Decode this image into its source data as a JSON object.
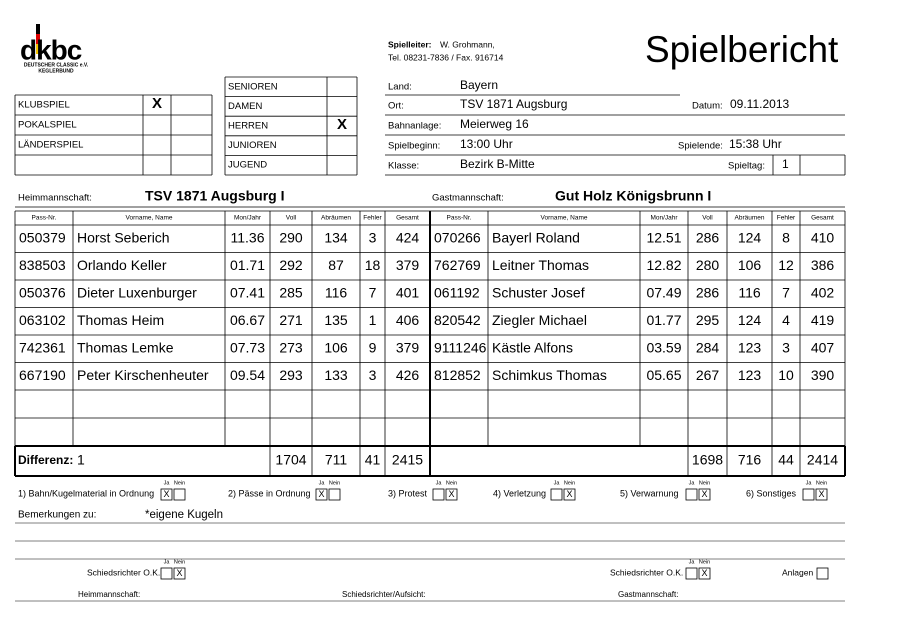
{
  "logo": {
    "mark": "dkbc",
    "line1": "DEUTSCHER CLASSIC e.V.",
    "line2": "KEGLERBUND"
  },
  "header": {
    "spielleiter_label": "Spielleiter:",
    "spielleiter": "W. Grohmann,",
    "contact": "Tel. 08231-7836 / Fax. 916714",
    "title": "Spielbericht"
  },
  "game_type": [
    {
      "label": "KLUBSPIEL",
      "mark": "X"
    },
    {
      "label": "POKALSPIEL"
    },
    {
      "label": "LÄNDERSPIEL"
    }
  ],
  "team_class": [
    {
      "label": "SENIOREN"
    },
    {
      "label": "DAMEN"
    },
    {
      "label": "HERREN",
      "mark": "X"
    },
    {
      "label": "JUNIOREN"
    },
    {
      "label": "JUGEND"
    }
  ],
  "info": {
    "land_label": "Land:",
    "land": "Bayern",
    "ort_label": "Ort:",
    "ort": "TSV 1871 Augsburg",
    "datum_label": "Datum:",
    "datum": "09.11.2013",
    "bahn_label": "Bahnanlage:",
    "bahn": "Meierweg 16",
    "beginn_label": "Spielbeginn:",
    "beginn": "13:00 Uhr",
    "ende_label": "Spielende:",
    "ende": "15:38 Uhr",
    "klasse_label": "Klasse:",
    "klasse": "Bezirk B-Mitte",
    "spieltag_label": "Spieltag:",
    "spieltag": "1"
  },
  "teams": {
    "home_label": "Heimmannschaft:",
    "home": "TSV 1871 Augsburg I",
    "guest_label": "Gastmannschaft:",
    "guest": "Gut Holz Königsbrunn I"
  },
  "table": {
    "columns": [
      "Pass-Nr.",
      "Vorname, Name",
      "Mon/Jahr",
      "Voll",
      "Abräumen",
      "Fehler",
      "Gesamt"
    ],
    "home_rows": [
      [
        "050379",
        "Horst Seberich",
        "11.36",
        "290",
        "134",
        "3",
        "424"
      ],
      [
        "838503",
        "Orlando Keller",
        "01.71",
        "292",
        "87",
        "18",
        "379"
      ],
      [
        "050376",
        "Dieter Luxenburger",
        "07.41",
        "285",
        "116",
        "7",
        "401"
      ],
      [
        "063102",
        "Thomas Heim",
        "06.67",
        "271",
        "135",
        "1",
        "406"
      ],
      [
        "742361",
        "Thomas Lemke",
        "07.73",
        "273",
        "106",
        "9",
        "379"
      ],
      [
        "667190",
        "Peter Kirschenheuter",
        "09.54",
        "293",
        "133",
        "3",
        "426"
      ]
    ],
    "guest_rows": [
      [
        "070266",
        "Bayerl Roland",
        "12.51",
        "286",
        "124",
        "8",
        "410"
      ],
      [
        "762769",
        "Leitner Thomas",
        "12.82",
        "280",
        "106",
        "12",
        "386"
      ],
      [
        "061192",
        "Schuster Josef",
        "07.49",
        "286",
        "116",
        "7",
        "402"
      ],
      [
        "820542",
        "Ziegler Michael",
        "01.77",
        "295",
        "124",
        "4",
        "419"
      ],
      [
        "9111246",
        "Kästle Alfons",
        "03.59",
        "284",
        "123",
        "3",
        "407"
      ],
      [
        "812852",
        "Schimkus Thomas",
        "05.65",
        "267",
        "123",
        "10",
        "390"
      ]
    ],
    "totals": {
      "label": "Differenz:",
      "difference": "1",
      "home": [
        "1704",
        "711",
        "41",
        "2415"
      ],
      "guest": [
        "1698",
        "716",
        "44",
        "2414"
      ]
    }
  },
  "yes_no": [
    "Ja",
    "Nein"
  ],
  "checks": [
    {
      "label": "1) Bahn/Kugelmaterial in Ordnung",
      "ja": "X"
    },
    {
      "label": "2) Pässe in Ordnung",
      "ja": "X"
    },
    {
      "label": "3) Protest",
      "nein": "X"
    },
    {
      "label": "4) Verletzung",
      "nein": "X"
    },
    {
      "label": "5) Verwarnung",
      "nein": "X"
    },
    {
      "label": "6) Sonstiges",
      "nein": "X"
    }
  ],
  "remarks": {
    "label": "Bemerkungen zu:",
    "text": "*eigene Kugeln"
  },
  "referee": {
    "left": {
      "label": "Schiedsrichter O.K.",
      "nein": "X"
    },
    "right": {
      "label": "Schiedsrichter O.K.",
      "nein": "X"
    },
    "anlagen": "Anlagen"
  },
  "signatures": [
    "Heimmannschaft:",
    "Schiedsrichter/Aufsicht:",
    "Gastmannschaft:"
  ]
}
